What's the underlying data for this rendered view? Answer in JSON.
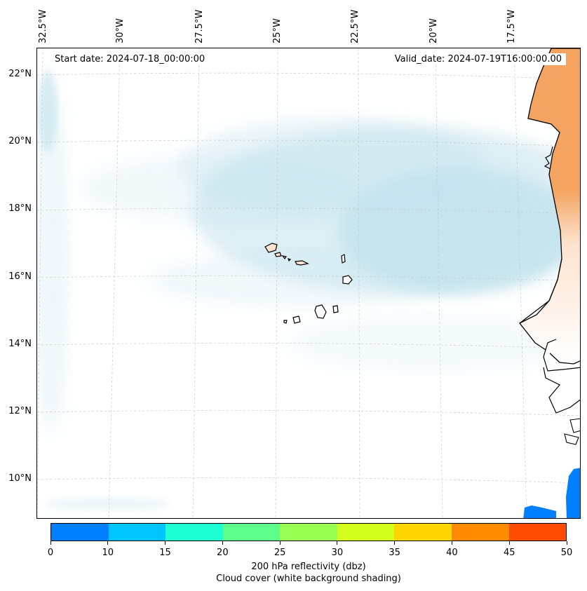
{
  "header": {
    "start_date": "Start date: 2024-07-18_00:00:00",
    "valid_date": "Valid_date: 2024-07-19T16:00:00.00"
  },
  "axes": {
    "longitude_labels": [
      "32.5°W",
      "30°W",
      "27.5°W",
      "25°W",
      "22.5°W",
      "20°W",
      "17.5°W"
    ],
    "latitude_labels": [
      "22°N",
      "20°N",
      "18°N",
      "16°N",
      "14°N",
      "12°N",
      "10°N"
    ]
  },
  "colorbar": {
    "ticks": [
      "0",
      "10",
      "15",
      "20",
      "25",
      "30",
      "35",
      "40",
      "45",
      "50"
    ],
    "colors": [
      "#0080ff",
      "#00c4ff",
      "#1fffd4",
      "#5cff8c",
      "#96ff52",
      "#d4ff1c",
      "#ffd600",
      "#ff8c00",
      "#ff4d00"
    ],
    "label": "200 hPa reflectivity (dbz)",
    "sublabel": "Cloud cover (white background shading)"
  },
  "colors": {
    "cloud": "#add8e6",
    "land_high": "#f4a460",
    "land_light": "#fde3cf",
    "coastline": "#000000",
    "reflectivity_low": "#0080ff"
  }
}
